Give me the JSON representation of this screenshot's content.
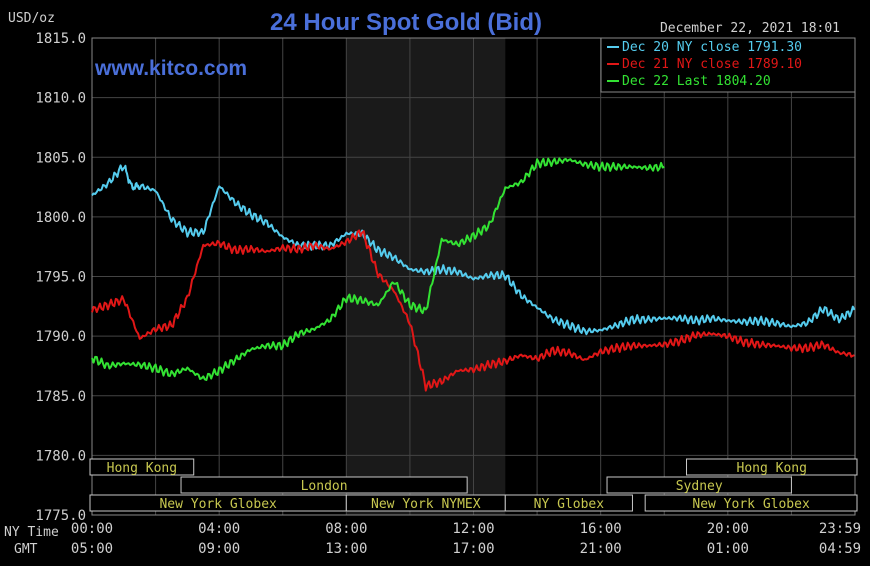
{
  "chart_data": {
    "type": "line",
    "title": "24 Hour Spot Gold (Bid)",
    "unit_label": "USD/oz",
    "watermark": "www.kitco.com",
    "timestamp": "December 22, 2021 18:01",
    "ylim": [
      1775.0,
      1815.0
    ],
    "y_ticks": [
      "1815.0",
      "1810.0",
      "1805.0",
      "1800.0",
      "1795.0",
      "1790.0",
      "1785.0",
      "1780.0",
      "1775.0"
    ],
    "y_tick_values": [
      1815,
      1810,
      1805,
      1800,
      1795,
      1790,
      1785,
      1780,
      1775
    ],
    "x_range_hours": [
      0,
      24
    ],
    "x_row_labels": {
      "ny": "NY Time",
      "gmt": "GMT"
    },
    "x_ticks_ny": [
      "00:00",
      "04:00",
      "08:00",
      "12:00",
      "16:00",
      "20:00",
      "23:59"
    ],
    "x_ticks_gmt": [
      "05:00",
      "09:00",
      "13:00",
      "17:00",
      "21:00",
      "01:00",
      "04:59"
    ],
    "x_tick_hours": [
      0,
      4,
      8,
      12,
      16,
      20,
      24
    ],
    "shaded_session_hours": [
      8,
      13
    ],
    "grid": true,
    "legend_position": "top-right",
    "colors": {
      "background": "#000000",
      "grid": "#444444",
      "title": "#4a6fd9",
      "watermark": "#4a6fd9",
      "text": "#d0d0d0",
      "shade": "#1a1a1a",
      "session_text": "#c8c850",
      "session_border": "#c8c8c8"
    },
    "series": [
      {
        "name": "Dec 20",
        "label": "Dec 20 NY close",
        "value_label": "1791.30",
        "color": "#55ccee",
        "hours": [
          0,
          0.5,
          1,
          1.25,
          1.5,
          2,
          2.5,
          3,
          3.5,
          4,
          4.5,
          5,
          5.5,
          6,
          6.5,
          7,
          7.5,
          8,
          8.5,
          9,
          9.5,
          10,
          10.5,
          11,
          11.5,
          12,
          12.5,
          13,
          13.5,
          14,
          14.5,
          15,
          15.5,
          16,
          16.5,
          17,
          17.5,
          18,
          18.5,
          19,
          19.5,
          20,
          20.5,
          21,
          21.5,
          22,
          22.5,
          23,
          23.5,
          23.98
        ],
        "values": [
          1801.8,
          1802.8,
          1804.3,
          1802.5,
          1802.6,
          1802.2,
          1799.8,
          1798.7,
          1798.7,
          1802.6,
          1801.2,
          1800.2,
          1799.5,
          1798.3,
          1797.6,
          1797.6,
          1797.6,
          1798.6,
          1798.6,
          1797.2,
          1796.6,
          1795.6,
          1795.4,
          1795.6,
          1795.4,
          1794.8,
          1795.1,
          1795.1,
          1793.4,
          1792.4,
          1791.4,
          1790.9,
          1790.4,
          1790.5,
          1790.9,
          1791.4,
          1791.4,
          1791.5,
          1791.5,
          1791.3,
          1791.5,
          1791.3,
          1791.2,
          1791.3,
          1791.1,
          1790.8,
          1791.1,
          1792.3,
          1791.4,
          1792.2
        ]
      },
      {
        "name": "Dec 21",
        "label": "Dec 21 NY close",
        "value_label": "1789.10",
        "color": "#e11717",
        "hours": [
          0,
          0.5,
          1,
          1.5,
          2,
          2.5,
          3,
          3.5,
          4,
          4.5,
          5,
          5.5,
          6,
          6.5,
          7,
          7.5,
          8,
          8.5,
          9,
          9.5,
          10,
          10.5,
          11,
          11.5,
          12,
          12.5,
          13,
          13.5,
          14,
          14.5,
          15,
          15.5,
          16,
          16.5,
          17,
          17.5,
          18,
          18.5,
          19,
          19.5,
          20,
          20.5,
          21,
          21.5,
          22,
          22.5,
          23,
          23.5,
          23.98
        ],
        "values": [
          1792.2,
          1792.6,
          1793.1,
          1789.8,
          1790.6,
          1790.9,
          1793.2,
          1797.6,
          1797.8,
          1797.2,
          1797.3,
          1797.1,
          1797.4,
          1797.3,
          1797.6,
          1797.3,
          1797.9,
          1798.8,
          1795.2,
          1793.8,
          1791.1,
          1785.8,
          1786.2,
          1787.1,
          1787.2,
          1787.6,
          1787.9,
          1788.4,
          1788.1,
          1788.8,
          1788.6,
          1788.0,
          1788.7,
          1789.0,
          1789.2,
          1789.2,
          1789.3,
          1789.6,
          1790.1,
          1790.2,
          1790.0,
          1789.5,
          1789.3,
          1789.2,
          1789.0,
          1789.0,
          1789.3,
          1788.6,
          1788.4
        ]
      },
      {
        "name": "Dec 22",
        "label": "Dec 22 Last",
        "value_label": "1804.20",
        "color": "#33e233",
        "hours": [
          0,
          0.5,
          1,
          1.5,
          2,
          2.5,
          3,
          3.5,
          4,
          4.5,
          5,
          5.5,
          6,
          6.5,
          7,
          7.5,
          8,
          8.5,
          9,
          9.5,
          10,
          10.5,
          11,
          11.5,
          12,
          12.5,
          13,
          13.5,
          14,
          14.5,
          15,
          15.5,
          16,
          16.5,
          17,
          17.5,
          18
        ],
        "values": [
          1788.2,
          1787.5,
          1787.7,
          1787.6,
          1787.3,
          1786.8,
          1787.3,
          1786.4,
          1787.1,
          1788.0,
          1788.9,
          1789.2,
          1789.2,
          1790.2,
          1790.6,
          1791.4,
          1793.2,
          1793.0,
          1792.6,
          1794.6,
          1792.6,
          1792.1,
          1798.1,
          1797.7,
          1798.4,
          1799.3,
          1802.4,
          1802.9,
          1804.5,
          1804.6,
          1804.8,
          1804.4,
          1804.2,
          1804.2,
          1804.2,
          1804.1,
          1804.2
        ]
      }
    ],
    "sessions": [
      {
        "name": "Hong Kong",
        "row": 0,
        "start_hour": -1,
        "end_hour": 3.2
      },
      {
        "name": "London",
        "row": 1,
        "start_hour": 2.8,
        "end_hour": 11.8
      },
      {
        "name": "New York Globex",
        "row": 2,
        "start_hour": -1,
        "end_hour": 8
      },
      {
        "name": "New York NYMEX",
        "row": 2,
        "start_hour": 8,
        "end_hour": 13
      },
      {
        "name": "NY Globex",
        "row": 2,
        "start_hour": 13,
        "end_hour": 17
      },
      {
        "name": "Hong Kong",
        "row": 0,
        "start_hour": 18.7,
        "end_hour": 25
      },
      {
        "name": "Sydney",
        "row": 1,
        "start_hour": 16.2,
        "end_hour": 22
      },
      {
        "name": "New York Globex",
        "row": 2,
        "start_hour": 17.4,
        "end_hour": 25
      }
    ]
  }
}
